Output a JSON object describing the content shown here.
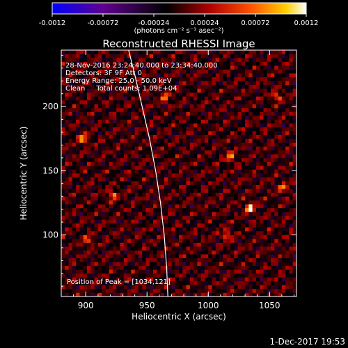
{
  "chart_data": {
    "type": "heatmap",
    "title": "Reconstructed RHESSI Image",
    "xlabel": "Heliocentric X (arcsec)",
    "ylabel": "Heliocentric Y (arcsec)",
    "xlim": [
      880,
      1072
    ],
    "ylim": [
      52,
      244
    ],
    "x_ticks": [
      "900",
      "950",
      "1000",
      "1050"
    ],
    "y_ticks": [
      "100",
      "150",
      "200"
    ],
    "x_tick_values": [
      900,
      950,
      1000,
      1050
    ],
    "y_tick_values": [
      100,
      150,
      200
    ],
    "colorbar": {
      "range": [
        -0.0012,
        0.0012
      ],
      "tick_labels": [
        "-0.0012",
        "-0.00072",
        "-0.00024",
        "0.00024",
        "0.00072",
        "0.0012"
      ],
      "tick_values": [
        -0.0012,
        -0.00072,
        -0.00024,
        0.00024,
        0.00072,
        0.0012
      ],
      "unit_label": "(photons cm⁻² s⁻¹ asec⁻²)",
      "colors": [
        "#0000ff",
        "#600090",
        "#000000",
        "#b00000",
        "#ff5000",
        "#ffd000",
        "#ffffff"
      ]
    },
    "annotations": [
      "28-Nov-2016 23:24:40.000 to 23:34:40.000",
      "Detectors: 3F 9F  Att 0",
      "Energy Range: 25.0 - 50.0 keV",
      "Clean     Total counts: 1.09E+04"
    ],
    "peak_label": "Position of Peak = [1034,121]",
    "peak": {
      "x": 1034,
      "y": 121
    },
    "limb_curve": {
      "x": [
        935,
        940,
        946,
        952,
        957,
        961,
        964,
        966,
        967
      ],
      "y": [
        244,
        225,
        200,
        175,
        150,
        125,
        100,
        75,
        52
      ]
    },
    "hotspots": [
      {
        "x": 1034,
        "y": 121,
        "v": 0.0012
      },
      {
        "x": 898,
        "y": 175,
        "v": 0.0009
      },
      {
        "x": 922,
        "y": 131,
        "v": 0.0008
      },
      {
        "x": 1018,
        "y": 161,
        "v": 0.0008
      },
      {
        "x": 1056,
        "y": 208,
        "v": 0.0007
      },
      {
        "x": 965,
        "y": 207,
        "v": 0.0007
      },
      {
        "x": 1061,
        "y": 137,
        "v": 0.0007
      },
      {
        "x": 1015,
        "y": 100,
        "v": 0.0007
      },
      {
        "x": 902,
        "y": 96,
        "v": 0.0006
      }
    ]
  },
  "footer": {
    "date": "1-Dec-2017 19:53"
  }
}
